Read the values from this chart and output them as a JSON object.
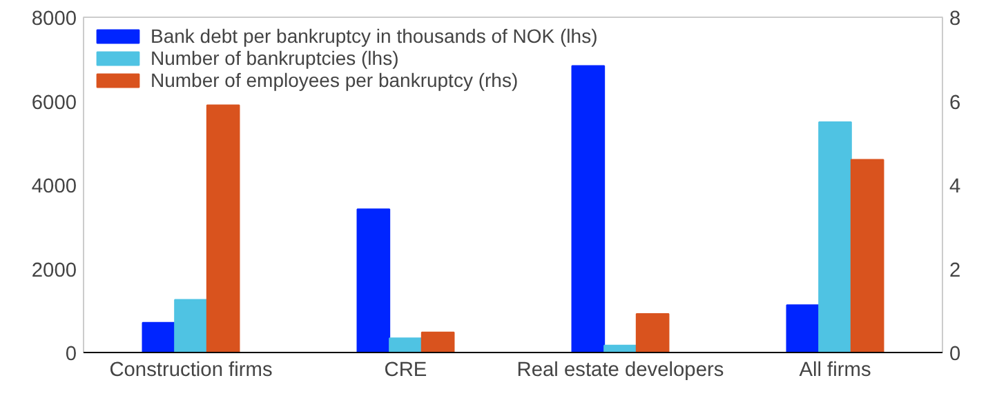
{
  "chart_data": {
    "type": "bar",
    "categories": [
      "Construction firms",
      "CRE",
      "Real estate developers",
      "All firms"
    ],
    "series": [
      {
        "name": "Bank debt per bankruptcy in thousands of NOK (lhs)",
        "color": "#0025ff",
        "values": [
          710,
          3420,
          6840,
          1130
        ]
      },
      {
        "name": "Number of bankruptcies (lhs)",
        "color": "#4fc3e3",
        "values": [
          1260,
          340,
          170,
          5500
        ]
      },
      {
        "name": "Number of employees per bankruptcy (rhs)",
        "color": "#d9531e",
        "values": [
          5.9,
          0.48,
          0.92,
          4.6
        ],
        "axis": "y2"
      }
    ],
    "ylim": [
      0,
      8000
    ],
    "yticks": [
      0,
      2000,
      4000,
      6000,
      8000
    ],
    "y2lim": [
      0,
      8
    ],
    "y2ticks": [
      0,
      2,
      4,
      6,
      8
    ],
    "grid": false,
    "legend": "top left"
  }
}
